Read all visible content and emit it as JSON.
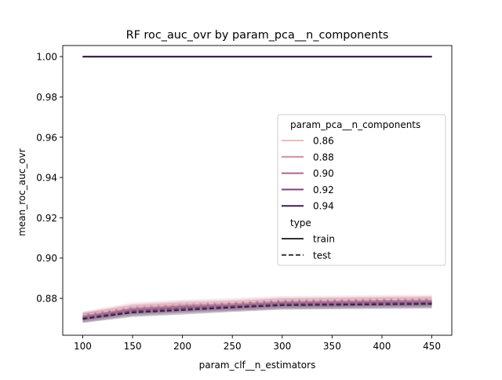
{
  "chart_data": {
    "type": "line",
    "title": "RF roc_auc_ovr by param_pca__n_components",
    "xlabel": "param_clf__n_estimators",
    "ylabel": "mean_roc_auc_ovr",
    "xlim": [
      80,
      470
    ],
    "ylim": [
      0.8617,
      1.0055
    ],
    "x_ticks": [
      100,
      150,
      200,
      250,
      300,
      350,
      400,
      450
    ],
    "y_ticks": [
      0.88,
      0.9,
      0.92,
      0.94,
      0.96,
      0.98,
      1.0
    ],
    "x": [
      100,
      150,
      200,
      250,
      300,
      350,
      400,
      450
    ],
    "grid": false,
    "legend": {
      "placement": "center-right",
      "hue_title": "param_pca__n_components",
      "hue_entries": [
        {
          "label": "0.86",
          "color": "#ebbcc0"
        },
        {
          "label": "0.88",
          "color": "#cc8ea4"
        },
        {
          "label": "0.90",
          "color": "#a86890"
        },
        {
          "label": "0.92",
          "color": "#7c4677"
        },
        {
          "label": "0.94",
          "color": "#3a2148"
        }
      ],
      "style_title": "type",
      "style_entries": [
        {
          "label": "train",
          "dash": "solid"
        },
        {
          "label": "test",
          "dash": "dashed"
        }
      ]
    },
    "series": [
      {
        "name": "0.86",
        "type": "train",
        "color": "#ebbcc0",
        "values": [
          1.0,
          1.0,
          1.0,
          1.0,
          1.0,
          1.0,
          1.0,
          1.0
        ]
      },
      {
        "name": "0.88",
        "type": "train",
        "color": "#cc8ea4",
        "values": [
          1.0,
          1.0,
          1.0,
          1.0,
          1.0,
          1.0,
          1.0,
          1.0
        ]
      },
      {
        "name": "0.90",
        "type": "train",
        "color": "#a86890",
        "values": [
          1.0,
          1.0,
          1.0,
          1.0,
          1.0,
          1.0,
          1.0,
          1.0
        ]
      },
      {
        "name": "0.92",
        "type": "train",
        "color": "#7c4677",
        "values": [
          1.0,
          1.0,
          1.0,
          1.0,
          1.0,
          1.0,
          1.0,
          1.0
        ]
      },
      {
        "name": "0.94",
        "type": "train",
        "color": "#3a2148",
        "values": [
          1.0,
          1.0,
          1.0,
          1.0,
          1.0,
          1.0,
          1.0,
          1.0
        ]
      },
      {
        "name": "0.86",
        "type": "test",
        "color": "#ebbcc0",
        "values": [
          0.8715,
          0.8758,
          0.8772,
          0.878,
          0.879,
          0.8792,
          0.8796,
          0.8797
        ],
        "band": [
          0.002,
          0.0022,
          0.0022,
          0.0022,
          0.0022,
          0.0022,
          0.0022,
          0.0022
        ]
      },
      {
        "name": "0.88",
        "type": "test",
        "color": "#cc8ea4",
        "values": [
          0.8712,
          0.875,
          0.8765,
          0.8772,
          0.8783,
          0.8785,
          0.8788,
          0.879
        ],
        "band": [
          0.002,
          0.0022,
          0.0022,
          0.0022,
          0.0022,
          0.0022,
          0.0022,
          0.0022
        ]
      },
      {
        "name": "0.90",
        "type": "test",
        "color": "#a86890",
        "values": [
          0.8708,
          0.8744,
          0.8757,
          0.8765,
          0.8777,
          0.8779,
          0.8782,
          0.8784
        ],
        "band": [
          0.002,
          0.0022,
          0.0022,
          0.0022,
          0.0022,
          0.0022,
          0.0022,
          0.0022
        ]
      },
      {
        "name": "0.92",
        "type": "test",
        "color": "#7c4677",
        "values": [
          0.8702,
          0.8737,
          0.875,
          0.876,
          0.8771,
          0.8773,
          0.8776,
          0.8778
        ],
        "band": [
          0.002,
          0.0022,
          0.0022,
          0.0022,
          0.0022,
          0.0022,
          0.0022,
          0.0022
        ]
      },
      {
        "name": "0.94",
        "type": "test",
        "color": "#3a2148",
        "values": [
          0.8698,
          0.873,
          0.8742,
          0.8755,
          0.8766,
          0.8768,
          0.877,
          0.8772
        ],
        "band": [
          0.002,
          0.0022,
          0.0022,
          0.0022,
          0.0022,
          0.0022,
          0.0022,
          0.0022
        ]
      }
    ]
  }
}
